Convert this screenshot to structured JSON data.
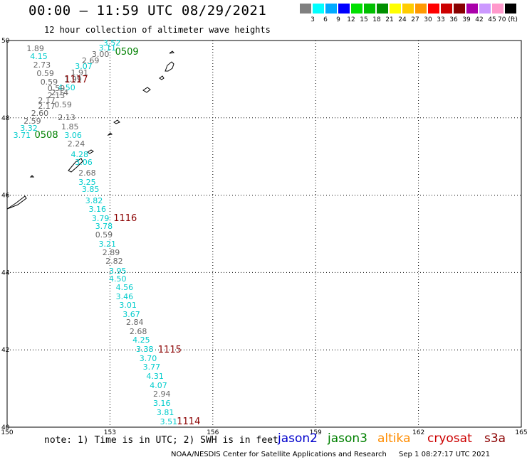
{
  "header": {
    "title": "00:00 – 11:59 UTC 08/29/2021",
    "subtitle": "12 hour collection of altimeter wave heights"
  },
  "legend": {
    "colors": [
      "#808080",
      "#00ffff",
      "#00aaff",
      "#0000ff",
      "#00e000",
      "#00c000",
      "#009000",
      "#ffff00",
      "#ffcc00",
      "#ff9900",
      "#ff0000",
      "#cc0000",
      "#880000",
      "#aa00aa",
      "#cc99ff",
      "#ff99cc",
      "#000000"
    ],
    "labels": [
      "3",
      "6",
      "9",
      "12",
      "15",
      "18",
      "21",
      "24",
      "27",
      "30",
      "33",
      "36",
      "39",
      "42",
      "45",
      "70 (ft)"
    ]
  },
  "map": {
    "lon_ticks": [
      "150",
      "153",
      "156",
      "159",
      "162",
      "165"
    ],
    "lat_ticks": [
      "50",
      "48",
      "46",
      "44",
      "42",
      "40"
    ],
    "measurements": [
      {
        "v": "3.52",
        "lon": 152.8,
        "lat": 49.94,
        "c": "cyan"
      },
      {
        "v": "3.11",
        "lon": 152.67,
        "lat": 49.81,
        "c": "cyan"
      },
      {
        "v": "1.89",
        "lon": 150.57,
        "lat": 49.79,
        "c": "gray"
      },
      {
        "v": "3.00",
        "lon": 152.47,
        "lat": 49.65,
        "c": "gray"
      },
      {
        "v": "4.15",
        "lon": 150.67,
        "lat": 49.59,
        "c": "cyan"
      },
      {
        "v": "2.69",
        "lon": 152.18,
        "lat": 49.48,
        "c": "gray"
      },
      {
        "v": "2.73",
        "lon": 150.76,
        "lat": 49.38,
        "c": "gray"
      },
      {
        "v": "3.07",
        "lon": 151.98,
        "lat": 49.33,
        "c": "cyan"
      },
      {
        "v": "1.91",
        "lon": 151.86,
        "lat": 49.17,
        "c": "gray"
      },
      {
        "v": "0.59",
        "lon": 150.86,
        "lat": 49.15,
        "c": "gray"
      },
      {
        "v": "1.99",
        "lon": 151.67,
        "lat": 49.01,
        "c": "gray"
      },
      {
        "v": "0.59",
        "lon": 150.97,
        "lat": 48.93,
        "c": "gray"
      },
      {
        "v": "4.50",
        "lon": 151.48,
        "lat": 48.79,
        "c": "cyan"
      },
      {
        "v": "0.59",
        "lon": 151.18,
        "lat": 48.76,
        "c": "gray"
      },
      {
        "v": "2.14",
        "lon": 151.28,
        "lat": 48.65,
        "c": "gray"
      },
      {
        "v": "2.13",
        "lon": 151.18,
        "lat": 48.58,
        "c": "gray"
      },
      {
        "v": "2.17",
        "lon": 150.9,
        "lat": 48.46,
        "c": "gray"
      },
      {
        "v": "0.59",
        "lon": 151.38,
        "lat": 48.34,
        "c": "gray"
      },
      {
        "v": "2.17",
        "lon": 150.9,
        "lat": 48.31,
        "c": "gray"
      },
      {
        "v": "2.60",
        "lon": 150.7,
        "lat": 48.12,
        "c": "gray"
      },
      {
        "v": "2.13",
        "lon": 151.48,
        "lat": 48.02,
        "c": "gray"
      },
      {
        "v": "2.59",
        "lon": 150.48,
        "lat": 47.92,
        "c": "gray"
      },
      {
        "v": "1.85",
        "lon": 151.58,
        "lat": 47.78,
        "c": "gray"
      },
      {
        "v": "3.32",
        "lon": 150.38,
        "lat": 47.73,
        "c": "cyan"
      },
      {
        "v": "3.71",
        "lon": 150.18,
        "lat": 47.55,
        "c": "cyan"
      },
      {
        "v": "3.06",
        "lon": 151.67,
        "lat": 47.55,
        "c": "cyan"
      },
      {
        "v": "2.24",
        "lon": 151.76,
        "lat": 47.33,
        "c": "gray"
      },
      {
        "v": "4.28",
        "lon": 151.86,
        "lat": 47.05,
        "c": "cyan"
      },
      {
        "v": "3.06",
        "lon": 151.98,
        "lat": 46.86,
        "c": "cyan"
      },
      {
        "v": "2.68",
        "lon": 152.08,
        "lat": 46.58,
        "c": "gray"
      },
      {
        "v": "3.25",
        "lon": 152.08,
        "lat": 46.34,
        "c": "cyan"
      },
      {
        "v": "3.85",
        "lon": 152.18,
        "lat": 46.15,
        "c": "cyan"
      },
      {
        "v": "3.82",
        "lon": 152.28,
        "lat": 45.87,
        "c": "cyan"
      },
      {
        "v": "3.16",
        "lon": 152.38,
        "lat": 45.65,
        "c": "cyan"
      },
      {
        "v": "3.79",
        "lon": 152.47,
        "lat": 45.41,
        "c": "cyan"
      },
      {
        "v": "3.78",
        "lon": 152.57,
        "lat": 45.21,
        "c": "cyan"
      },
      {
        "v": "0.59",
        "lon": 152.57,
        "lat": 44.98,
        "c": "gray"
      },
      {
        "v": "3.21",
        "lon": 152.67,
        "lat": 44.75,
        "c": "cyan"
      },
      {
        "v": "2.89",
        "lon": 152.78,
        "lat": 44.52,
        "c": "gray"
      },
      {
        "v": "2.82",
        "lon": 152.87,
        "lat": 44.31,
        "c": "gray"
      },
      {
        "v": "3.95",
        "lon": 152.97,
        "lat": 44.05,
        "c": "cyan"
      },
      {
        "v": "4.50",
        "lon": 152.97,
        "lat": 43.85,
        "c": "cyan"
      },
      {
        "v": "4.56",
        "lon": 153.17,
        "lat": 43.63,
        "c": "cyan"
      },
      {
        "v": "3.46",
        "lon": 153.17,
        "lat": 43.38,
        "c": "cyan"
      },
      {
        "v": "3.01",
        "lon": 153.27,
        "lat": 43.17,
        "c": "cyan"
      },
      {
        "v": "3.67",
        "lon": 153.37,
        "lat": 42.93,
        "c": "cyan"
      },
      {
        "v": "2.84",
        "lon": 153.47,
        "lat": 42.72,
        "c": "gray"
      },
      {
        "v": "2.68",
        "lon": 153.57,
        "lat": 42.49,
        "c": "gray"
      },
      {
        "v": "4.25",
        "lon": 153.66,
        "lat": 42.27,
        "c": "cyan"
      },
      {
        "v": "3.38",
        "lon": 153.76,
        "lat": 42.02,
        "c": "cyan"
      },
      {
        "v": "3.70",
        "lon": 153.86,
        "lat": 41.79,
        "c": "cyan"
      },
      {
        "v": "3.77",
        "lon": 153.96,
        "lat": 41.56,
        "c": "cyan"
      },
      {
        "v": "4.31",
        "lon": 154.06,
        "lat": 41.32,
        "c": "cyan"
      },
      {
        "v": "4.07",
        "lon": 154.16,
        "lat": 41.09,
        "c": "cyan"
      },
      {
        "v": "2.94",
        "lon": 154.26,
        "lat": 40.86,
        "c": "gray"
      },
      {
        "v": "3.16",
        "lon": 154.26,
        "lat": 40.62,
        "c": "cyan"
      },
      {
        "v": "3.81",
        "lon": 154.36,
        "lat": 40.38,
        "c": "cyan"
      },
      {
        "v": "3.51",
        "lon": 154.46,
        "lat": 40.14,
        "c": "cyan"
      }
    ],
    "passes": [
      {
        "v": "0509",
        "lon": 153.15,
        "lat": 49.71,
        "c": "#008000"
      },
      {
        "v": "1117",
        "lon": 151.67,
        "lat": 48.98,
        "c": "#8b0000"
      },
      {
        "v": "0508",
        "lon": 150.8,
        "lat": 47.55,
        "c": "#008000"
      },
      {
        "v": "1116",
        "lon": 153.1,
        "lat": 45.41,
        "c": "#8b0000"
      },
      {
        "v": "1115",
        "lon": 154.4,
        "lat": 42.0,
        "c": "#8b0000"
      },
      {
        "v": "1114",
        "lon": 154.95,
        "lat": 40.15,
        "c": "#8b0000"
      }
    ]
  },
  "note": "note: 1) Time is in UTC; 2) SWH is in feet",
  "satellites": [
    {
      "name": "jason2",
      "color": "#0000cc"
    },
    {
      "name": "jason3",
      "color": "#008000"
    },
    {
      "name": "altika",
      "color": "#ff8c00"
    },
    {
      "name": "cryosat",
      "color": "#cc0000"
    },
    {
      "name": "s3a",
      "color": "#8b0000"
    }
  ],
  "footer": {
    "credit": "NOAA/NESDIS Center for Satellite Applications and Research",
    "date": "Sep  1 08:27:17 UTC 2021"
  }
}
